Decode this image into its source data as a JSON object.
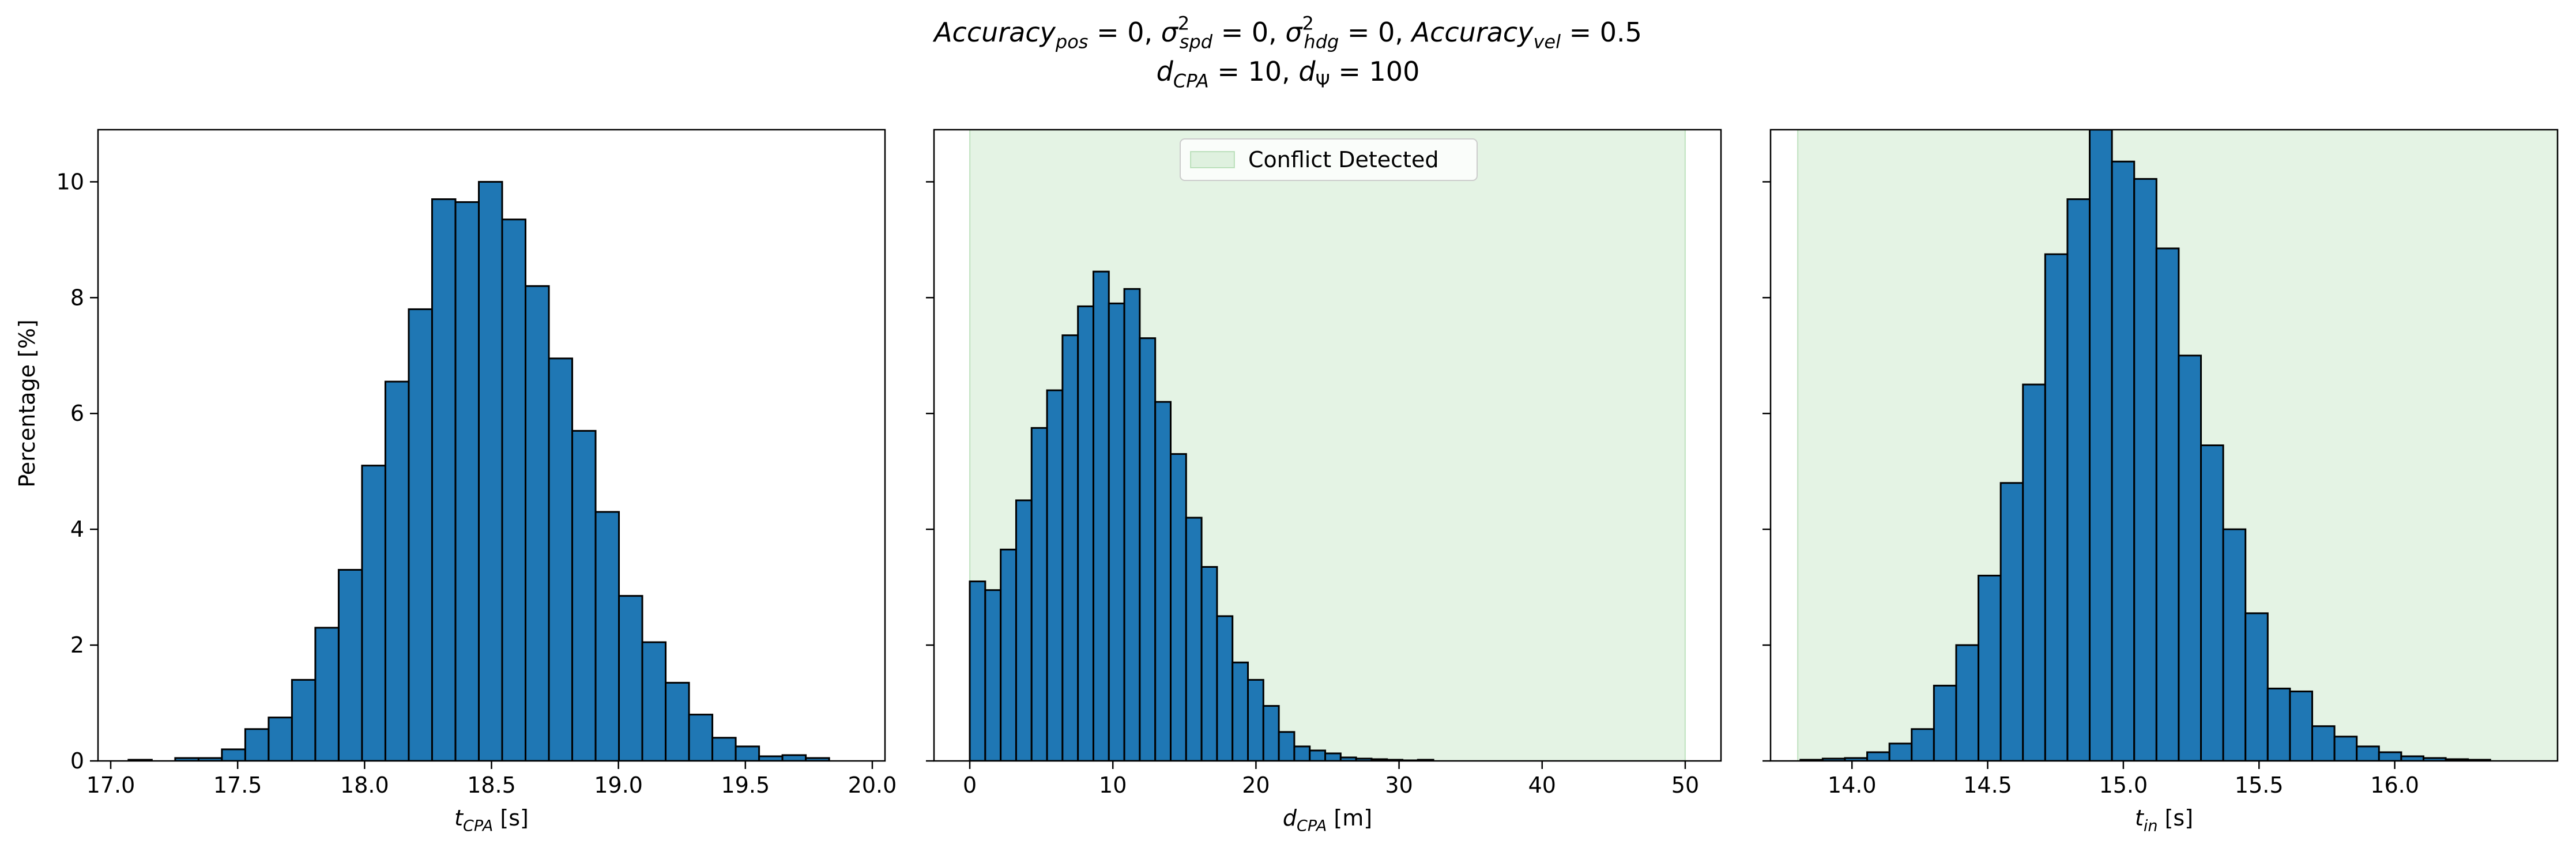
{
  "title": {
    "line1_parts": [
      {
        "t": "Accuracy",
        "style": "italic"
      },
      {
        "t": "pos",
        "style": "italic-sub"
      },
      {
        "t": " = 0, ",
        "style": "normal"
      },
      {
        "t": "σ",
        "style": "italic"
      },
      {
        "t": "2",
        "style": "sup"
      },
      {
        "t": "spd",
        "style": "italic-sub"
      },
      {
        "t": " = 0, ",
        "style": "normal"
      },
      {
        "t": "σ",
        "style": "italic"
      },
      {
        "t": "2",
        "style": "sup"
      },
      {
        "t": "hdg",
        "style": "italic-sub"
      },
      {
        "t": " = 0, ",
        "style": "normal"
      },
      {
        "t": "Accuracy",
        "style": "italic"
      },
      {
        "t": "vel",
        "style": "italic-sub"
      },
      {
        "t": " = 0.5",
        "style": "normal"
      }
    ],
    "line2_parts": [
      {
        "t": "d",
        "style": "italic"
      },
      {
        "t": "CPA",
        "style": "italic-sub"
      },
      {
        "t": " = 10, ",
        "style": "normal"
      },
      {
        "t": "d",
        "style": "italic"
      },
      {
        "t": "Ψ",
        "style": "sub"
      },
      {
        "t": " = 100",
        "style": "normal"
      }
    ]
  },
  "colors": {
    "bar_fill": "#1f77b4",
    "bar_edge": "#000000",
    "shade": "#2ca02c"
  },
  "shared_ylabel": "Percentage [%]",
  "chart_data": [
    {
      "type": "bar",
      "xlabel_parts": [
        {
          "t": "t",
          "style": "italic"
        },
        {
          "t": "CPA",
          "style": "italic-sub"
        },
        {
          "t": " [s]",
          "style": "normal"
        }
      ],
      "ylabel": "Percentage [%]",
      "xlim": [
        16.95,
        20.05
      ],
      "ylim": [
        0,
        10.9
      ],
      "xticks": [
        17.0,
        17.5,
        18.0,
        18.5,
        19.0,
        19.5,
        20.0
      ],
      "xtick_labels": [
        "17.0",
        "17.5",
        "18.0",
        "18.5",
        "19.0",
        "19.5",
        "20.0"
      ],
      "yticks": [
        0,
        2,
        4,
        6,
        8,
        10
      ],
      "ytick_labels": [
        "0",
        "2",
        "4",
        "6",
        "8",
        "10"
      ],
      "bin_edges": [
        17.07,
        17.162,
        17.254,
        17.346,
        17.438,
        17.53,
        17.622,
        17.714,
        17.806,
        17.898,
        17.99,
        18.082,
        18.174,
        18.266,
        18.358,
        18.45,
        18.542,
        18.634,
        18.726,
        18.818,
        18.91,
        19.002,
        19.094,
        19.186,
        19.278,
        19.37,
        19.462,
        19.554,
        19.646,
        19.738,
        19.83,
        19.922
      ],
      "values": [
        0.02,
        0.0,
        0.05,
        0.05,
        0.2,
        0.55,
        0.75,
        1.4,
        2.3,
        3.3,
        5.1,
        6.55,
        7.8,
        9.7,
        9.65,
        10.0,
        9.35,
        8.2,
        6.95,
        5.7,
        4.3,
        2.85,
        2.05,
        1.35,
        0.8,
        0.4,
        0.25,
        0.08,
        0.1,
        0.05,
        0.0
      ],
      "shade": null
    },
    {
      "type": "bar",
      "xlabel_parts": [
        {
          "t": "d",
          "style": "italic"
        },
        {
          "t": "CPA",
          "style": "italic-sub"
        },
        {
          "t": " [m]",
          "style": "normal"
        }
      ],
      "xlim": [
        -2.5,
        52.5
      ],
      "ylim": [
        0,
        10.9
      ],
      "xticks": [
        0,
        10,
        20,
        30,
        40,
        50
      ],
      "xtick_labels": [
        "0",
        "10",
        "20",
        "30",
        "40",
        "50"
      ],
      "yticks": [
        0,
        2,
        4,
        6,
        8,
        10
      ],
      "bin_edges": [
        0.0,
        1.08,
        2.16,
        3.24,
        4.32,
        5.4,
        6.48,
        7.56,
        8.64,
        9.72,
        10.8,
        11.88,
        12.96,
        14.04,
        15.12,
        16.2,
        17.28,
        18.36,
        19.44,
        20.52,
        21.6,
        22.68,
        23.76,
        24.84,
        25.92,
        27.0,
        28.08,
        29.16,
        30.24,
        31.32,
        32.4,
        33.48
      ],
      "values": [
        3.1,
        2.95,
        3.65,
        4.5,
        5.75,
        6.4,
        7.35,
        7.85,
        8.45,
        7.9,
        8.15,
        7.3,
        6.2,
        5.3,
        4.2,
        3.35,
        2.5,
        1.7,
        1.4,
        0.95,
        0.5,
        0.25,
        0.18,
        0.13,
        0.06,
        0.04,
        0.03,
        0.02,
        0.01,
        0.02,
        0.0
      ],
      "shade": {
        "x0": 0,
        "x1": 50
      },
      "legend": {
        "label": "Conflict Detected",
        "placement": "upper center"
      }
    },
    {
      "type": "bar",
      "xlabel_parts": [
        {
          "t": "t",
          "style": "italic"
        },
        {
          "t": "in",
          "style": "italic-sub"
        },
        {
          "t": " [s]",
          "style": "normal"
        }
      ],
      "xlim": [
        13.7,
        16.6
      ],
      "ylim": [
        0,
        10.9
      ],
      "xticks": [
        14.0,
        14.5,
        15.0,
        15.5,
        16.0
      ],
      "xtick_labels": [
        "14.0",
        "14.5",
        "15.0",
        "15.5",
        "16.0"
      ],
      "yticks": [
        0,
        2,
        4,
        6,
        8,
        10
      ],
      "bin_edges": [
        13.81,
        13.892,
        13.974,
        14.056,
        14.138,
        14.22,
        14.302,
        14.384,
        14.466,
        14.548,
        14.63,
        14.712,
        14.794,
        14.876,
        14.958,
        15.04,
        15.122,
        15.204,
        15.286,
        15.368,
        15.45,
        15.532,
        15.614,
        15.696,
        15.778,
        15.86,
        15.942,
        16.024,
        16.106,
        16.188,
        16.27,
        16.352
      ],
      "values": [
        0.02,
        0.04,
        0.05,
        0.15,
        0.3,
        0.55,
        1.3,
        2.0,
        3.2,
        4.8,
        6.5,
        8.75,
        9.7,
        10.9,
        10.35,
        10.05,
        8.85,
        7.0,
        5.45,
        4.0,
        2.55,
        1.25,
        1.2,
        0.6,
        0.42,
        0.25,
        0.15,
        0.08,
        0.05,
        0.03,
        0.02
      ],
      "shade": {
        "x0": 13.8,
        "x1": 16.6
      }
    }
  ]
}
